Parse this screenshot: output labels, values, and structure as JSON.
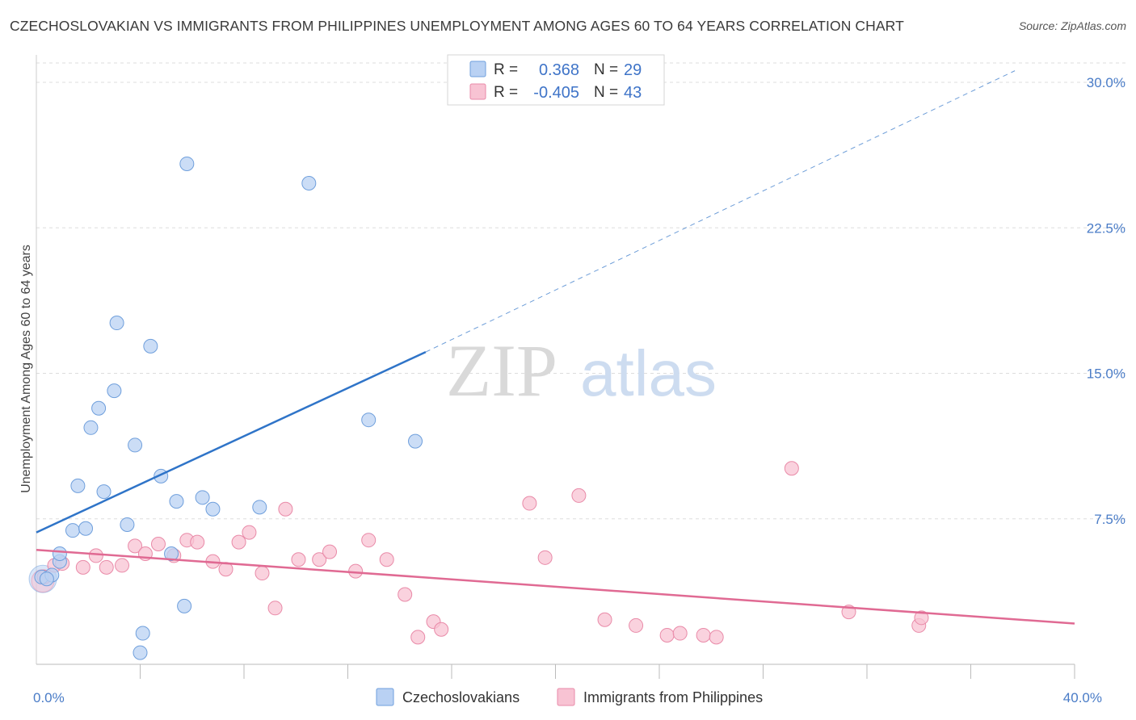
{
  "title": "CZECHOSLOVAKIAN VS IMMIGRANTS FROM PHILIPPINES UNEMPLOYMENT AMONG AGES 60 TO 64 YEARS CORRELATION CHART",
  "source": "Source: ZipAtlas.com",
  "watermark": {
    "zip": "ZIP",
    "atlas": "atlas"
  },
  "colors": {
    "blue_fill": "#b9d1f3",
    "blue_stroke": "#6f9fdc",
    "blue_line": "#2f74c8",
    "pink_fill": "#f8c3d3",
    "pink_stroke": "#e98aa8",
    "pink_line": "#e06a93",
    "grid": "#dddddd",
    "tick_text": "#4a7cc7"
  },
  "legend": {
    "rows": [
      {
        "r_label": "R =",
        "r_value": "0.368",
        "n_label": "N =",
        "n_value": "29"
      },
      {
        "r_label": "R =",
        "r_value": "-0.405",
        "n_label": "N =",
        "n_value": "43"
      }
    ]
  },
  "chart_data": {
    "type": "scatter",
    "title": "CZECHOSLOVAKIAN VS IMMIGRANTS FROM PHILIPPINES UNEMPLOYMENT AMONG AGES 60 TO 64 YEARS CORRELATION CHART",
    "xlabel": "",
    "ylabel": "Unemployment Among Ages 60 to 64 years",
    "xlim": [
      0,
      40
    ],
    "ylim": [
      0,
      31
    ],
    "x_tick_labels": [
      {
        "value": 0,
        "label": "0.0%"
      },
      {
        "value": 40,
        "label": "40.0%"
      }
    ],
    "y_ticks": [
      {
        "value": 7.5,
        "label": "7.5%"
      },
      {
        "value": 15.0,
        "label": "15.0%"
      },
      {
        "value": 22.5,
        "label": "22.5%"
      },
      {
        "value": 30.0,
        "label": "30.0%"
      }
    ],
    "x_minor_ticks": [
      4,
      8,
      12,
      16,
      20,
      24,
      28,
      32,
      36,
      40
    ],
    "grid": true,
    "legend_position": "top-center",
    "series": [
      {
        "name": "Czechoslovakians",
        "color": "blue",
        "points": [
          [
            0.2,
            4.5
          ],
          [
            0.6,
            4.6
          ],
          [
            0.9,
            5.3
          ],
          [
            0.9,
            5.7
          ],
          [
            1.4,
            6.9
          ],
          [
            1.6,
            9.2
          ],
          [
            1.9,
            7.0
          ],
          [
            2.1,
            12.2
          ],
          [
            2.4,
            13.2
          ],
          [
            2.6,
            8.9
          ],
          [
            3.0,
            14.1
          ],
          [
            3.1,
            17.6
          ],
          [
            3.5,
            7.2
          ],
          [
            3.8,
            11.3
          ],
          [
            4.0,
            0.6
          ],
          [
            4.1,
            1.6
          ],
          [
            4.4,
            16.4
          ],
          [
            4.8,
            9.7
          ],
          [
            5.2,
            5.7
          ],
          [
            5.4,
            8.4
          ],
          [
            5.7,
            3.0
          ],
          [
            5.8,
            25.8
          ],
          [
            6.4,
            8.6
          ],
          [
            6.8,
            8.0
          ],
          [
            8.6,
            8.1
          ],
          [
            10.5,
            24.8
          ],
          [
            12.8,
            12.6
          ],
          [
            14.6,
            11.5
          ],
          [
            0.4,
            4.4
          ]
        ],
        "trend": {
          "x0": 0,
          "y0": 6.8,
          "x1": 15.0,
          "y1": 16.1,
          "dashed_to_x": 37.7,
          "dashed_to_y": 30.6
        }
      },
      {
        "name": "Immigrants from Philippines",
        "color": "pink",
        "points": [
          [
            0.3,
            4.5
          ],
          [
            0.7,
            5.1
          ],
          [
            1.0,
            5.2
          ],
          [
            1.8,
            5.0
          ],
          [
            2.3,
            5.6
          ],
          [
            2.7,
            5.0
          ],
          [
            3.3,
            5.1
          ],
          [
            3.8,
            6.1
          ],
          [
            4.2,
            5.7
          ],
          [
            4.7,
            6.2
          ],
          [
            5.3,
            5.6
          ],
          [
            5.8,
            6.4
          ],
          [
            6.2,
            6.3
          ],
          [
            6.8,
            5.3
          ],
          [
            7.3,
            4.9
          ],
          [
            7.8,
            6.3
          ],
          [
            8.2,
            6.8
          ],
          [
            8.7,
            4.7
          ],
          [
            9.2,
            2.9
          ],
          [
            9.6,
            8.0
          ],
          [
            10.1,
            5.4
          ],
          [
            10.9,
            5.4
          ],
          [
            11.3,
            5.8
          ],
          [
            12.3,
            4.8
          ],
          [
            12.8,
            6.4
          ],
          [
            13.5,
            5.4
          ],
          [
            14.2,
            3.6
          ],
          [
            14.7,
            1.4
          ],
          [
            15.3,
            2.2
          ],
          [
            15.6,
            1.8
          ],
          [
            19.0,
            8.3
          ],
          [
            19.6,
            5.5
          ],
          [
            20.9,
            8.7
          ],
          [
            21.9,
            2.3
          ],
          [
            23.1,
            2.0
          ],
          [
            24.3,
            1.5
          ],
          [
            24.8,
            1.6
          ],
          [
            25.7,
            1.5
          ],
          [
            26.2,
            1.4
          ],
          [
            29.1,
            10.1
          ],
          [
            31.3,
            2.7
          ],
          [
            34.0,
            2.0
          ],
          [
            34.1,
            2.4
          ]
        ],
        "trend": {
          "x0": 0,
          "y0": 5.9,
          "x1": 40,
          "y1": 2.1
        }
      }
    ]
  }
}
